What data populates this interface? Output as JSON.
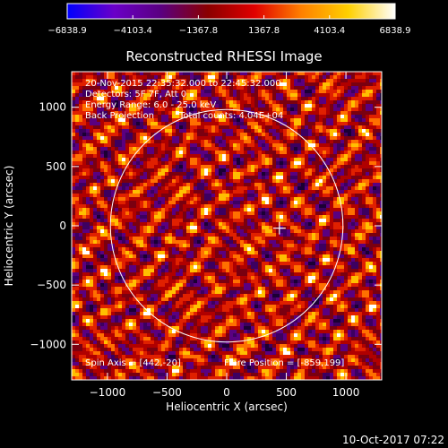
{
  "chart_data": {
    "type": "heatmap",
    "title": "Reconstructed RHESSI Image",
    "xlabel": "Heliocentric X (arcsec)",
    "ylabel": "Heliocentric Y (arcsec)",
    "xlim": [
      -1300,
      1300
    ],
    "ylim": [
      -1300,
      1300
    ],
    "x_ticks": [
      -1000,
      -500,
      0,
      500,
      1000
    ],
    "y_ticks": [
      -1000,
      -500,
      0,
      500,
      1000
    ],
    "x_tick_labels": [
      "−1000",
      "−500",
      "0",
      "500",
      "1000"
    ],
    "y_tick_labels": [
      "−1000",
      "−500",
      "0",
      "500",
      "1000"
    ],
    "colorbar": {
      "range": [
        -6838.9,
        6838.9
      ],
      "ticks": [
        -6838.9,
        -4103.4,
        -1367.8,
        1367.8,
        4103.4,
        6838.9
      ],
      "tick_labels": [
        "−6838.9",
        "−4103.4",
        "−1367.8",
        "1367.8",
        "4103.4",
        "6838.9"
      ],
      "colors": [
        "#0000ff",
        "#6a00c8",
        "#5a0080",
        "#8a0000",
        "#e00000",
        "#ff8000",
        "#ffd000",
        "#ffffff"
      ]
    },
    "annotations": {
      "time": "20-Nov-2015 22:35:32.000 to 22:45:32.000",
      "detectors": "Detectors: 5F 7F, Att 0",
      "energy": "Energy Range: 6.0 - 25.0 keV",
      "method": "Back Projection",
      "counts": "Total counts: 4.04E+04",
      "spin_axis": "Spin Axis = [442,-20]",
      "flare_position": "Flare Position = [-859,199]"
    },
    "solar_disk": {
      "center": [
        0,
        0
      ],
      "radius": 975
    },
    "marker": {
      "symbol": "+",
      "x": 442,
      "y": -20
    },
    "grid": false
  },
  "footer": {
    "timestamp": "10-Oct-2017 07:22"
  },
  "colors": {
    "background": "#000000",
    "foreground": "#ffffff"
  }
}
